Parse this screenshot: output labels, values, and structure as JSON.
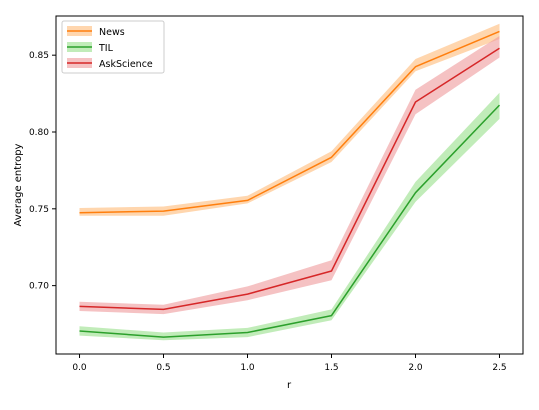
{
  "chart_data": {
    "type": "line",
    "title": "",
    "xlabel": "r",
    "ylabel": "Average entropy",
    "x": [
      0.0,
      0.5,
      1.0,
      1.5,
      2.0,
      2.5
    ],
    "xticks": [
      "0.0",
      "0.5",
      "1.0",
      "1.5",
      "2.0",
      "2.5"
    ],
    "yticks": [
      0.7,
      0.75,
      0.8,
      0.85
    ],
    "ytick_labels": [
      "0.70",
      "0.75",
      "0.80",
      "0.85"
    ],
    "xlim": [
      -0.14,
      2.64
    ],
    "ylim": [
      0.6555,
      0.8755
    ],
    "grid": false,
    "legend_position": "top-left",
    "series": [
      {
        "name": "News",
        "color": "#ff7f0e",
        "band_color": "#ffbb78",
        "values": [
          0.7475,
          0.7485,
          0.7555,
          0.7835,
          0.8425,
          0.8655
        ],
        "lower": [
          0.7455,
          0.7455,
          0.7535,
          0.7805,
          0.8395,
          0.8605
        ],
        "upper": [
          0.7505,
          0.7515,
          0.7585,
          0.7875,
          0.8475,
          0.8705
        ]
      },
      {
        "name": "TIL",
        "color": "#2ca02c",
        "band_color": "#98df8a",
        "values": [
          0.6705,
          0.6665,
          0.6695,
          0.6805,
          0.7605,
          0.8175
        ],
        "lower": [
          0.6675,
          0.6645,
          0.6665,
          0.6775,
          0.7545,
          0.8085
        ],
        "upper": [
          0.6735,
          0.6695,
          0.6725,
          0.6845,
          0.7675,
          0.8255
        ]
      },
      {
        "name": "AskScience",
        "color": "#d62728",
        "band_color": "#ee9a9b",
        "values": [
          0.6865,
          0.6845,
          0.6945,
          0.7095,
          0.8195,
          0.8545
        ],
        "lower": [
          0.6835,
          0.6815,
          0.6905,
          0.7035,
          0.8115,
          0.8485
        ],
        "upper": [
          0.6895,
          0.6875,
          0.6995,
          0.7165,
          0.8275,
          0.8625
        ]
      }
    ]
  }
}
